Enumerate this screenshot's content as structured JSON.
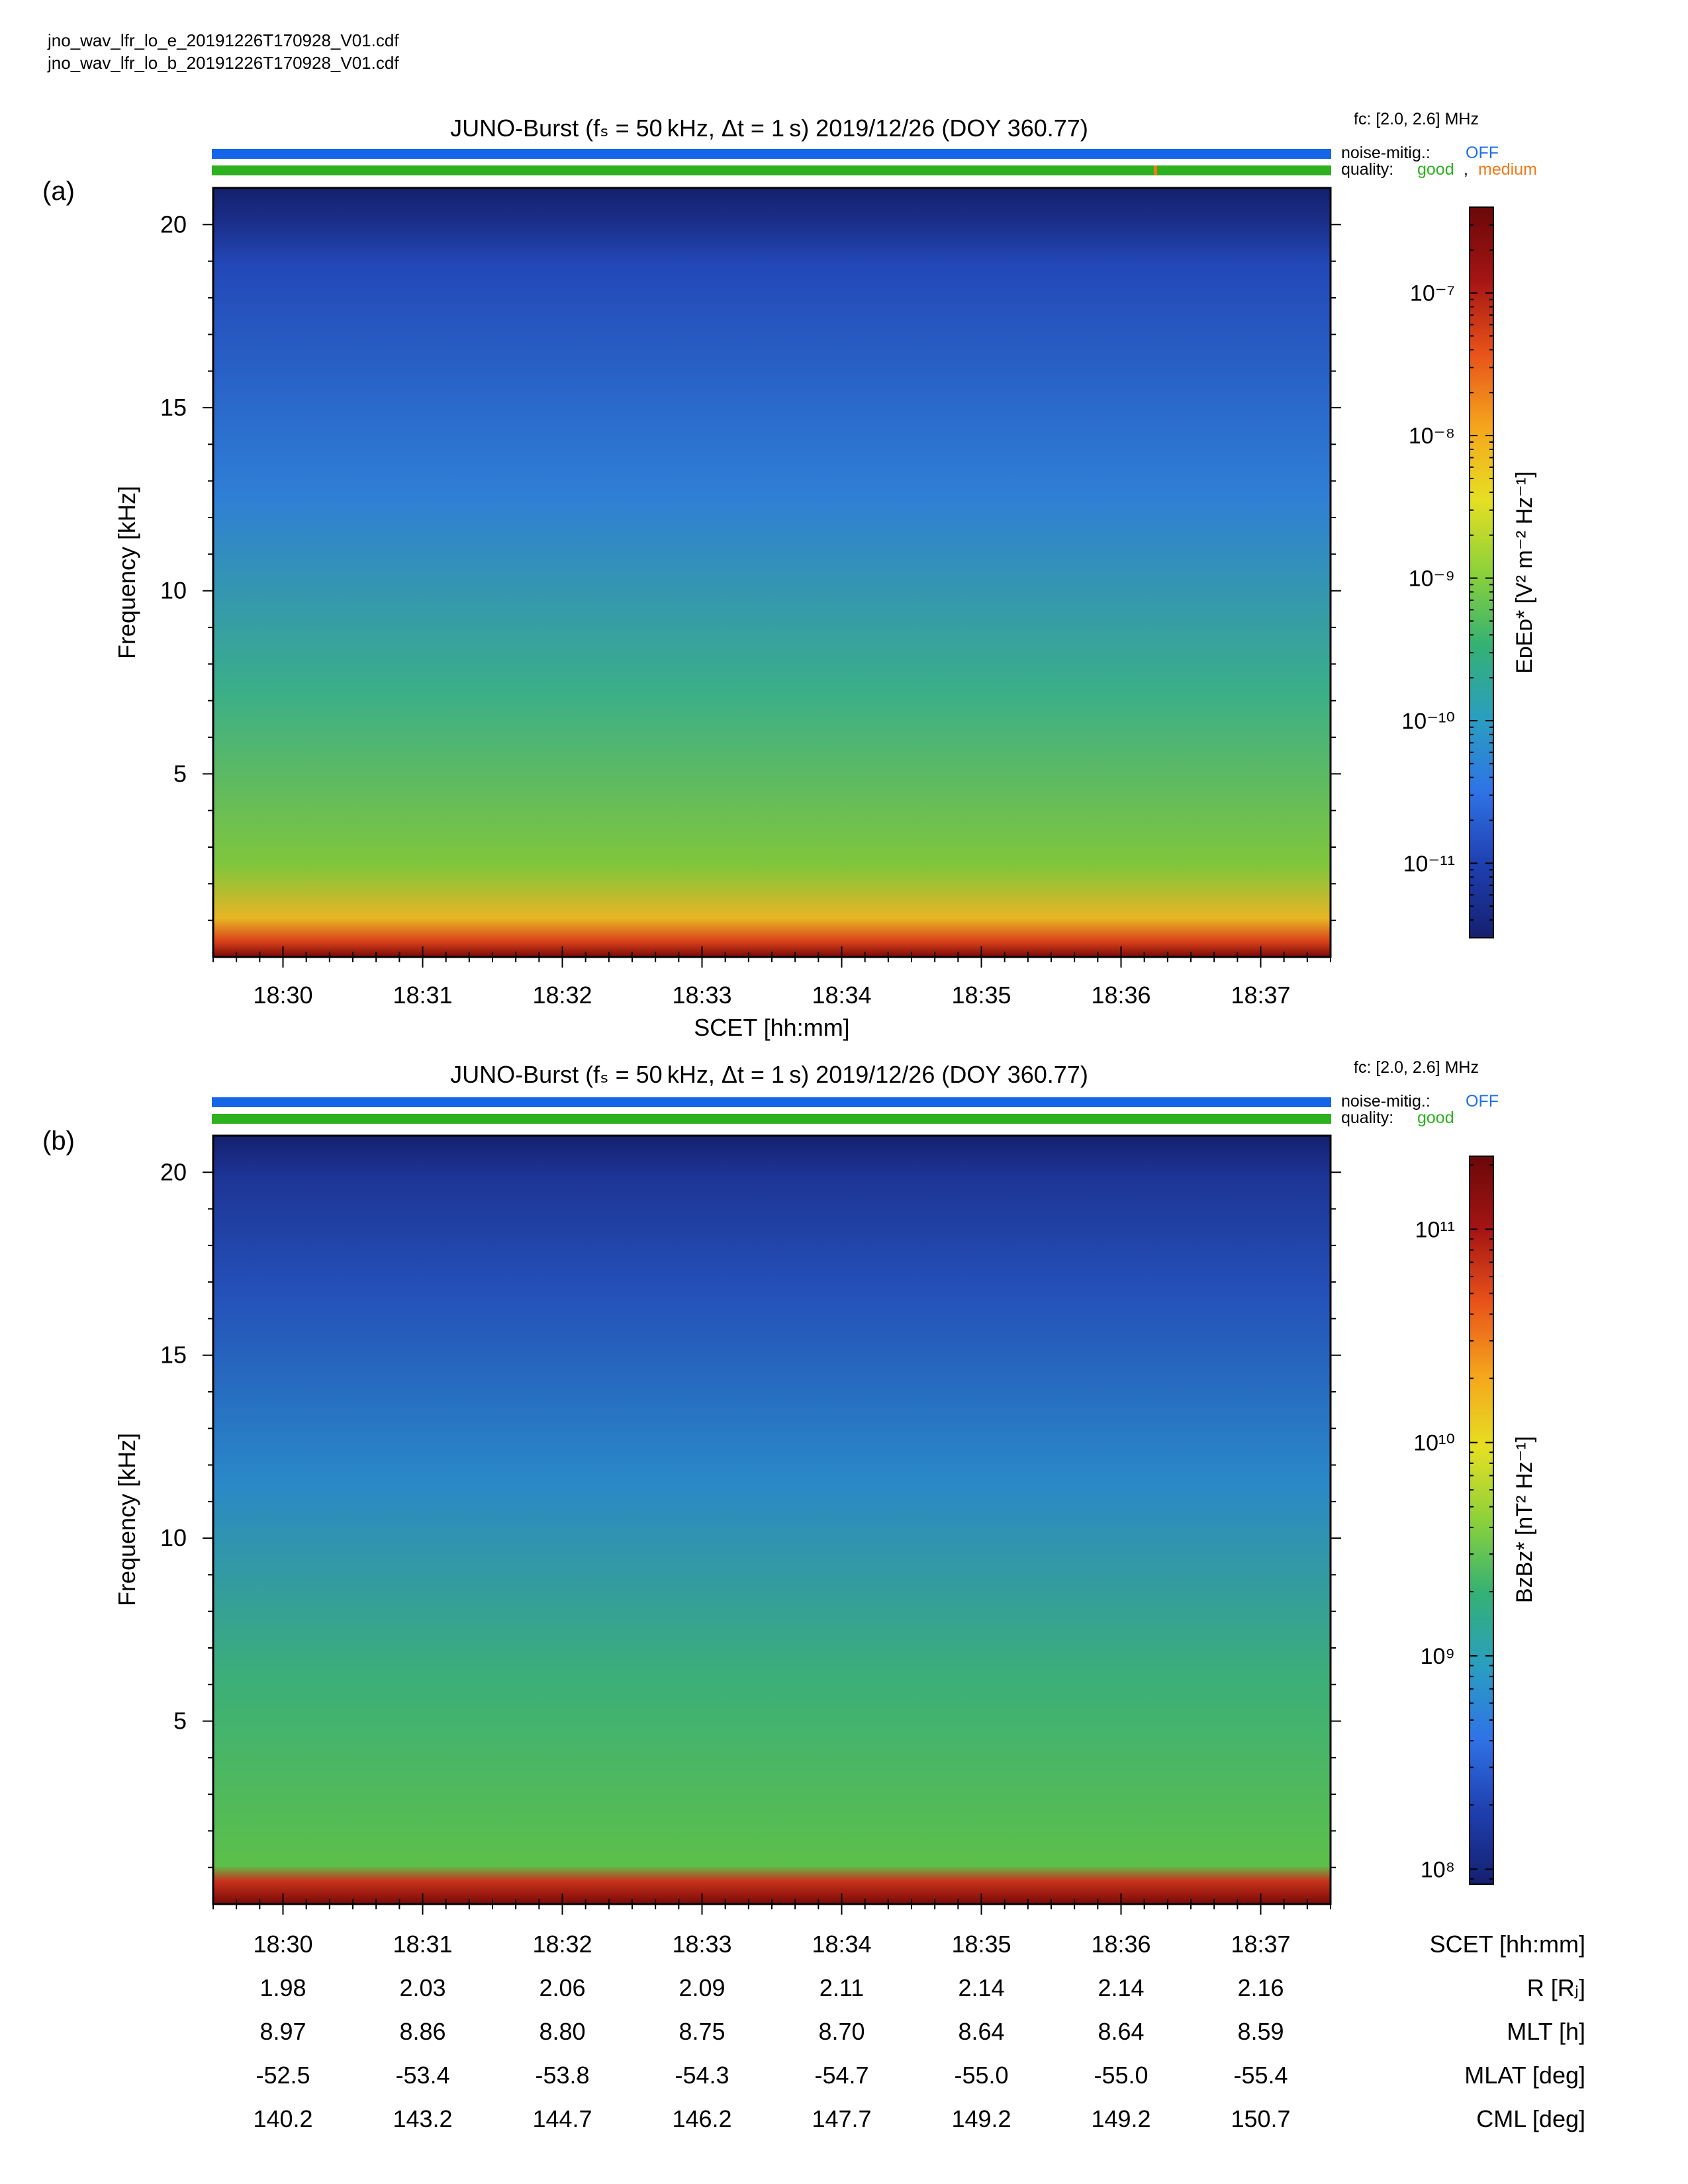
{
  "header": {
    "files": [
      "jno_wav_lfr_lo_e_20191226T170928_V01.cdf",
      "jno_wav_lfr_lo_b_20191226T170928_V01.cdf"
    ]
  },
  "colors": {
    "noise_bar": "#1565e8",
    "quality_good": "#2db11f",
    "quality_medium": "#f07a18",
    "noise_text": "#1f6fe8",
    "colormap": [
      "#14206e",
      "#1f3fb0",
      "#2f73e6",
      "#2a9ec0",
      "#34b174",
      "#8cd13a",
      "#e6df22",
      "#f5a51c",
      "#e8521a",
      "#a51414",
      "#6a0808"
    ]
  },
  "panels": [
    {
      "label": "(a)",
      "title": "JUNO-Burst (fₛ = 50 kHz, Δt = 1 s)  2019/12/26 (DOY 360.77)",
      "fc": "fᴄ: [2.0, 2.6] MHz",
      "noise_label": "noise-mitig.:",
      "noise_value": "OFF",
      "quality_label": "quality:",
      "quality_values": [
        "good",
        ",",
        "medium"
      ],
      "ylabel": "Frequency [kHz]",
      "xlabel": "SCET [hh:mm]",
      "colorbar_label": "EᴅEᴅ* [V² m⁻² Hz⁻¹]"
    },
    {
      "label": "(b)",
      "title": "JUNO-Burst (fₛ = 50 kHz, Δt = 1 s)  2019/12/26 (DOY 360.77)",
      "fc": "fᴄ: [2.0, 2.6] MHz",
      "noise_label": "noise-mitig.:",
      "noise_value": "OFF",
      "quality_label": "quality:",
      "quality_values": [
        "good"
      ],
      "ylabel": "Frequency [kHz]",
      "xlabel": "",
      "colorbar_label": "BᴢBᴢ* [nT² Hz⁻¹]"
    }
  ],
  "chart_data": [
    {
      "type": "heatmap",
      "panel": "(a)",
      "x_axis": {
        "label": "SCET [hh:mm]",
        "ticks": [
          "18:30",
          "18:31",
          "18:32",
          "18:33",
          "18:34",
          "18:35",
          "18:36",
          "18:37"
        ],
        "range": [
          "18:29:30",
          "18:37:30"
        ]
      },
      "y_axis": {
        "label": "Frequency [kHz]",
        "ticks": [
          5,
          10,
          15,
          20
        ],
        "range": [
          0,
          21
        ]
      },
      "colorbar": {
        "scale": "log",
        "range": [
          3e-12,
          4e-07
        ],
        "ticks": [
          "10⁻¹¹",
          "10⁻¹⁰",
          "10⁻⁹",
          "10⁻⁸",
          "10⁻⁷"
        ]
      }
    },
    {
      "type": "heatmap",
      "panel": "(b)",
      "x_axis": {
        "label": "SCET [hh:mm]",
        "ticks": [
          "18:30",
          "18:31",
          "18:32",
          "18:33",
          "18:34",
          "18:35",
          "18:36",
          "18:37"
        ],
        "range": [
          "18:29:30",
          "18:37:30"
        ]
      },
      "y_axis": {
        "label": "Frequency [kHz]",
        "ticks": [
          5,
          10,
          15,
          20
        ],
        "range": [
          0,
          21
        ]
      },
      "colorbar": {
        "scale": "log",
        "range": [
          85000000.0,
          220000000000.0
        ],
        "ticks": [
          "10⁸",
          "10⁹",
          "10¹⁰",
          "10¹¹"
        ]
      }
    }
  ],
  "ephemeris": {
    "rows": [
      {
        "label": "SCET [hh:mm]",
        "values": [
          "18:30",
          "18:31",
          "18:32",
          "18:33",
          "18:34",
          "18:35",
          "18:36",
          "18:37"
        ]
      },
      {
        "label": "R [Rⱼ]",
        "values": [
          "1.98",
          "2.03",
          "2.06",
          "2.09",
          "2.11",
          "2.14",
          "2.14",
          "2.16"
        ]
      },
      {
        "label": "MLT [h]",
        "values": [
          "8.97",
          "8.86",
          "8.80",
          "8.75",
          "8.70",
          "8.64",
          "8.64",
          "8.59"
        ]
      },
      {
        "label": "MLAT [deg]",
        "values": [
          "-52.5",
          "-53.4",
          "-53.8",
          "-54.3",
          "-54.7",
          "-55.0",
          "-55.0",
          "-55.4"
        ]
      },
      {
        "label": "CML [deg]",
        "values": [
          "140.2",
          "143.2",
          "144.7",
          "146.2",
          "147.7",
          "149.2",
          "149.2",
          "150.7"
        ]
      }
    ]
  }
}
